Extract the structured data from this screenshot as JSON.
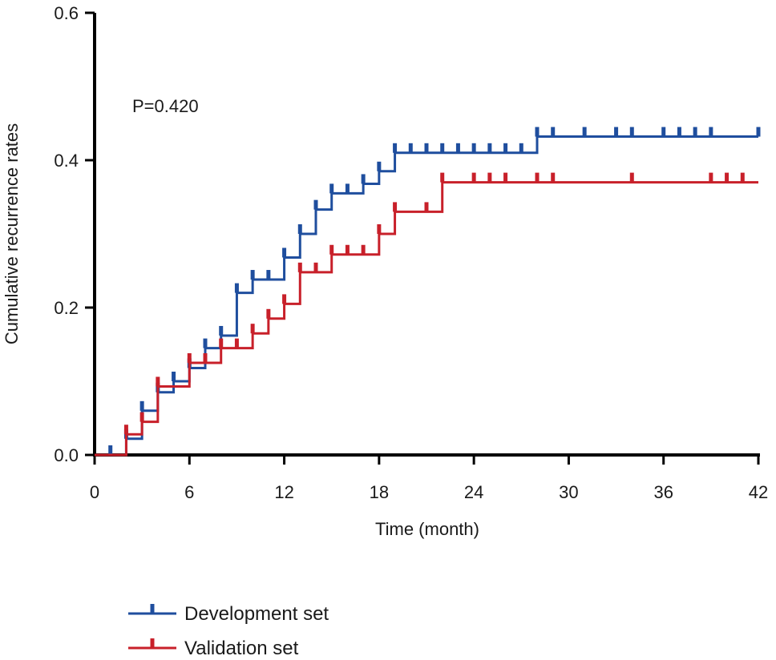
{
  "chart_data": {
    "type": "line",
    "subtype": "kaplan-meier cumulative incidence step plot",
    "title": "",
    "xlabel": "Time (month)",
    "ylabel": "Cumulative recurrence rates",
    "xlim": [
      0,
      42
    ],
    "ylim": [
      0,
      0.6
    ],
    "x_ticks": [
      "0",
      "6",
      "12",
      "18",
      "24",
      "30",
      "36",
      "42"
    ],
    "y_ticks": [
      "0.0",
      "0.2",
      "0.4",
      "0.6"
    ],
    "grid": false,
    "legend_position": "bottom-left",
    "annotation": "P=0.420",
    "series": [
      {
        "name": "Development set",
        "color": "#1f4e9e",
        "steps": [
          [
            0,
            0
          ],
          [
            2,
            0.022
          ],
          [
            3,
            0.06
          ],
          [
            4,
            0.085
          ],
          [
            5,
            0.1
          ],
          [
            6,
            0.118
          ],
          [
            7,
            0.145
          ],
          [
            8,
            0.162
          ],
          [
            9,
            0.22
          ],
          [
            10,
            0.238
          ],
          [
            12,
            0.268
          ],
          [
            13,
            0.3
          ],
          [
            14,
            0.333
          ],
          [
            15,
            0.355
          ],
          [
            17,
            0.368
          ],
          [
            18,
            0.385
          ],
          [
            19,
            0.41
          ],
          [
            28,
            0.432
          ]
        ],
        "end_x": 42,
        "censored_x": [
          1,
          2,
          3,
          4,
          5,
          6,
          7,
          8,
          9,
          10,
          11,
          12,
          13,
          14,
          15,
          16,
          17,
          18,
          19,
          20,
          21,
          22,
          23,
          24,
          25,
          26,
          27,
          28,
          29,
          31,
          33,
          34,
          36,
          37,
          38,
          39,
          42
        ]
      },
      {
        "name": "Validation set",
        "color": "#c8202a",
        "steps": [
          [
            0,
            0
          ],
          [
            2,
            0.028
          ],
          [
            3,
            0.045
          ],
          [
            4,
            0.093
          ],
          [
            6,
            0.125
          ],
          [
            8,
            0.145
          ],
          [
            10,
            0.165
          ],
          [
            11,
            0.185
          ],
          [
            12,
            0.205
          ],
          [
            13,
            0.248
          ],
          [
            15,
            0.272
          ],
          [
            18,
            0.3
          ],
          [
            19,
            0.33
          ],
          [
            22,
            0.37
          ]
        ],
        "end_x": 42,
        "censored_x": [
          2,
          3,
          4,
          6,
          7,
          8,
          9,
          10,
          11,
          12,
          13,
          14,
          15,
          16,
          17,
          18,
          19,
          21,
          22,
          24,
          25,
          26,
          28,
          29,
          34,
          39,
          40,
          41
        ]
      }
    ]
  }
}
